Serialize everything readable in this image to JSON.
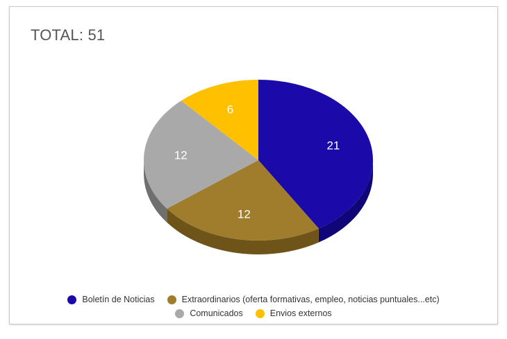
{
  "chart_data": {
    "type": "pie",
    "title": "TOTAL: 51",
    "three_d": true,
    "legend_position": "bottom",
    "categories": [
      "Boletín de Noticias",
      "Extraordinarios (oferta formativas, empleo, noticias puntuales...etc)",
      "Comunicados",
      "Envios externos"
    ],
    "values": [
      21,
      12,
      12,
      6
    ],
    "colors": [
      "#1a0aa8",
      "#a07d2c",
      "#a9a9a9",
      "#ffc000"
    ],
    "side_colors": [
      "#0f0678",
      "#6e5418",
      "#6f6f6f",
      "#b38600"
    ],
    "labels": [
      "21",
      "12",
      "12",
      "6"
    ]
  }
}
